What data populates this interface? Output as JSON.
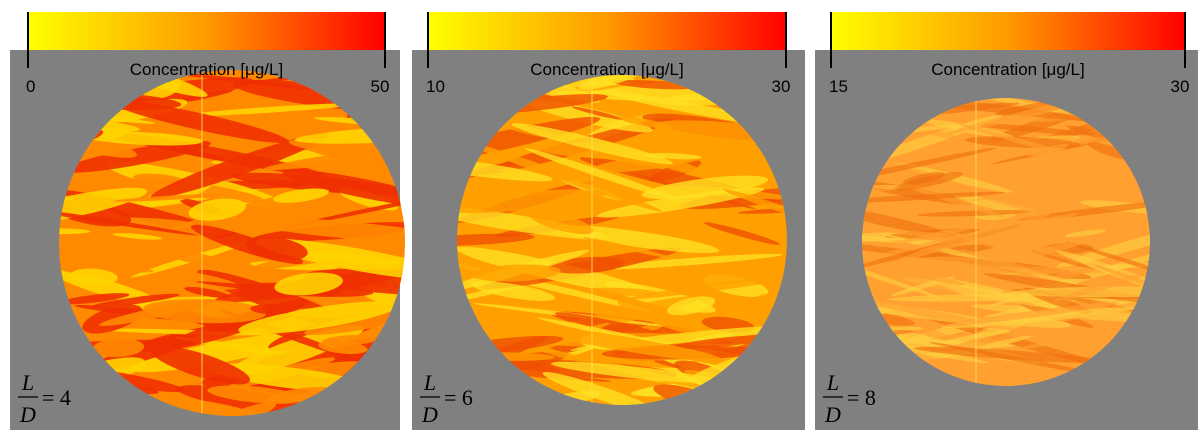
{
  "panels": [
    {
      "colorbar": {
        "label": "Concentration [μg/L]",
        "ticks": [
          0,
          50
        ]
      },
      "equation": {
        "numerator": "L",
        "denominator": "D",
        "rhs": "= 4"
      }
    },
    {
      "colorbar": {
        "label": "Concentration [μg/L]",
        "ticks": [
          10,
          30
        ]
      },
      "equation": {
        "numerator": "L",
        "denominator": "D",
        "rhs": "= 6"
      }
    },
    {
      "colorbar": {
        "label": "Concentration [μg/L]",
        "ticks": [
          15,
          30
        ]
      },
      "equation": {
        "numerator": "L",
        "denominator": "D",
        "rhs": "= 8"
      }
    }
  ]
}
